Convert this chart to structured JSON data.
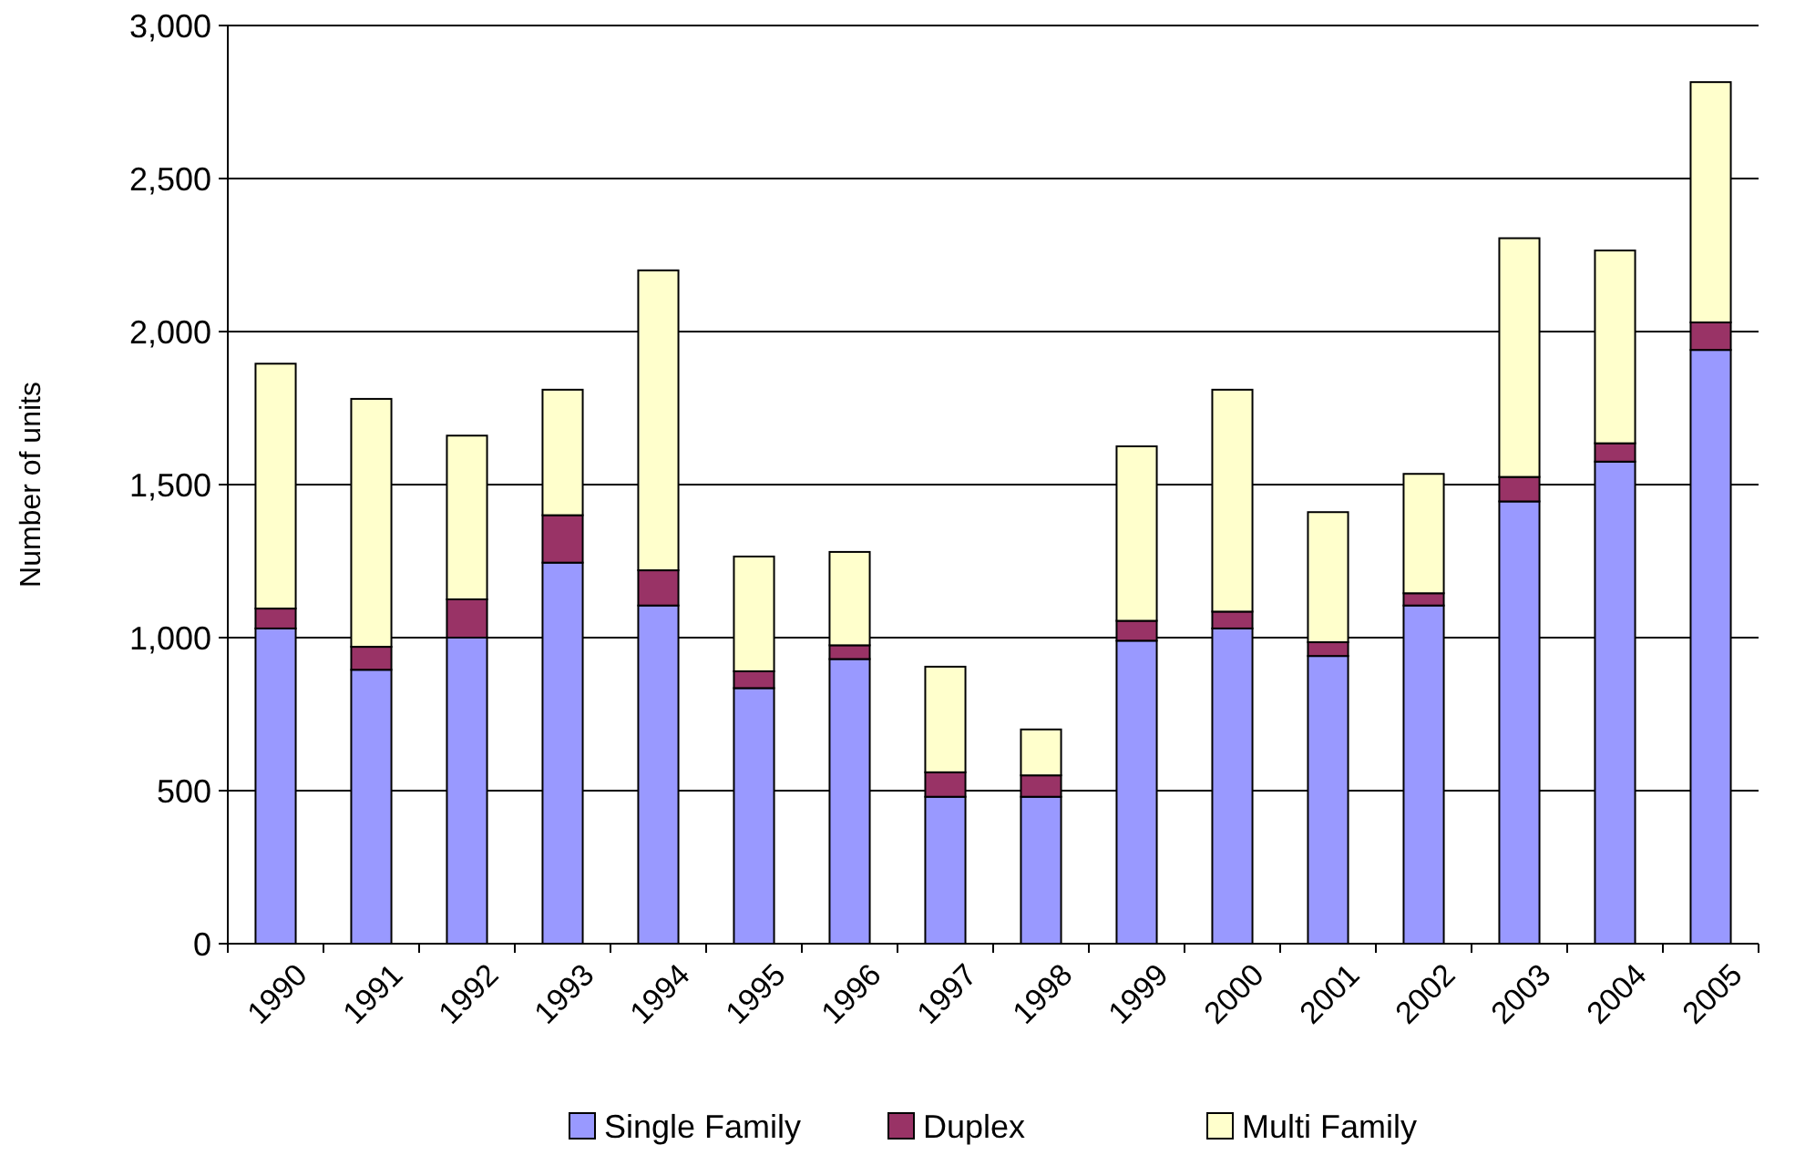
{
  "chart_data": {
    "type": "bar",
    "stacked": true,
    "ylabel": "Number of units",
    "categories": [
      "1990",
      "1991",
      "1992",
      "1993",
      "1994",
      "1995",
      "1996",
      "1997",
      "1998",
      "1999",
      "2000",
      "2001",
      "2002",
      "2003",
      "2004",
      "2005"
    ],
    "series": [
      {
        "name": "Single Family",
        "color": "#9999ff",
        "values": [
          1030,
          895,
          1000,
          1245,
          1105,
          835,
          930,
          480,
          480,
          990,
          1030,
          940,
          1105,
          1445,
          1575,
          1940
        ]
      },
      {
        "name": "Duplex",
        "color": "#993366",
        "values": [
          65,
          75,
          125,
          155,
          115,
          55,
          45,
          80,
          70,
          65,
          55,
          45,
          40,
          80,
          60,
          90
        ]
      },
      {
        "name": "Multi Family",
        "color": "#ffffcc",
        "values": [
          800,
          810,
          535,
          410,
          980,
          375,
          305,
          345,
          150,
          570,
          725,
          425,
          390,
          780,
          630,
          785
        ]
      }
    ],
    "ylim": [
      0,
      3000
    ],
    "yticks": [
      {
        "value": 0,
        "label": "0"
      },
      {
        "value": 500,
        "label": "500"
      },
      {
        "value": 1000,
        "label": "1,000"
      },
      {
        "value": 1500,
        "label": "1,500"
      },
      {
        "value": 2000,
        "label": "2,000"
      },
      {
        "value": 2500,
        "label": "2,500"
      },
      {
        "value": 3000,
        "label": "3,000"
      }
    ],
    "grid": "y",
    "legend": "bottom"
  }
}
